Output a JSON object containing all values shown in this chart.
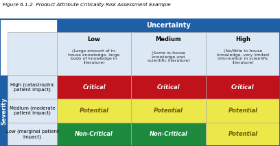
{
  "title": "Figure 6.1-2  Product Attribute Criticality Risk Assessment Example",
  "col_header_bg": "#1f5fa6",
  "col_header_text": "Uncertainty",
  "sub_header_bg": "#dce9f5",
  "row_header_bg": "#1f5fa6",
  "row_header_text": "Severity",
  "row_label_bg": "#dce9f5",
  "col_labels": [
    "Low",
    "Medium",
    "High"
  ],
  "col_descs": [
    "(Large amount of in-\nhouse knowledge, large\nbody of knowledge in\nliterature)",
    "(Some in-house\nknowledge and\nscientific literature)",
    "(No/little in-house\nknowledge, very limited\ninformation in scientific\nliterature)"
  ],
  "row_labels": [
    "High (catastrophic\npatient impact)",
    "Medium (moderate\npatient impact)",
    "Low (marginal patient\nimpact)"
  ],
  "cell_colors": [
    [
      "#c0121a",
      "#c0121a",
      "#c0121a"
    ],
    [
      "#ede84a",
      "#ede84a",
      "#ede84a"
    ],
    [
      "#1d8a3e",
      "#1d8a3e",
      "#ede84a"
    ]
  ],
  "cell_texts": [
    [
      "Critical",
      "Critical",
      "Critical"
    ],
    [
      "Potential",
      "Potential",
      "Potential"
    ],
    [
      "Non-Critical",
      "Non-Critical",
      "Potential"
    ]
  ],
  "cell_text_colors": [
    [
      "white",
      "white",
      "white"
    ],
    [
      "#6b5a00",
      "#6b5a00",
      "#6b5a00"
    ],
    [
      "white",
      "white",
      "#6b5a00"
    ]
  ],
  "border_color": "#1f5fa6"
}
